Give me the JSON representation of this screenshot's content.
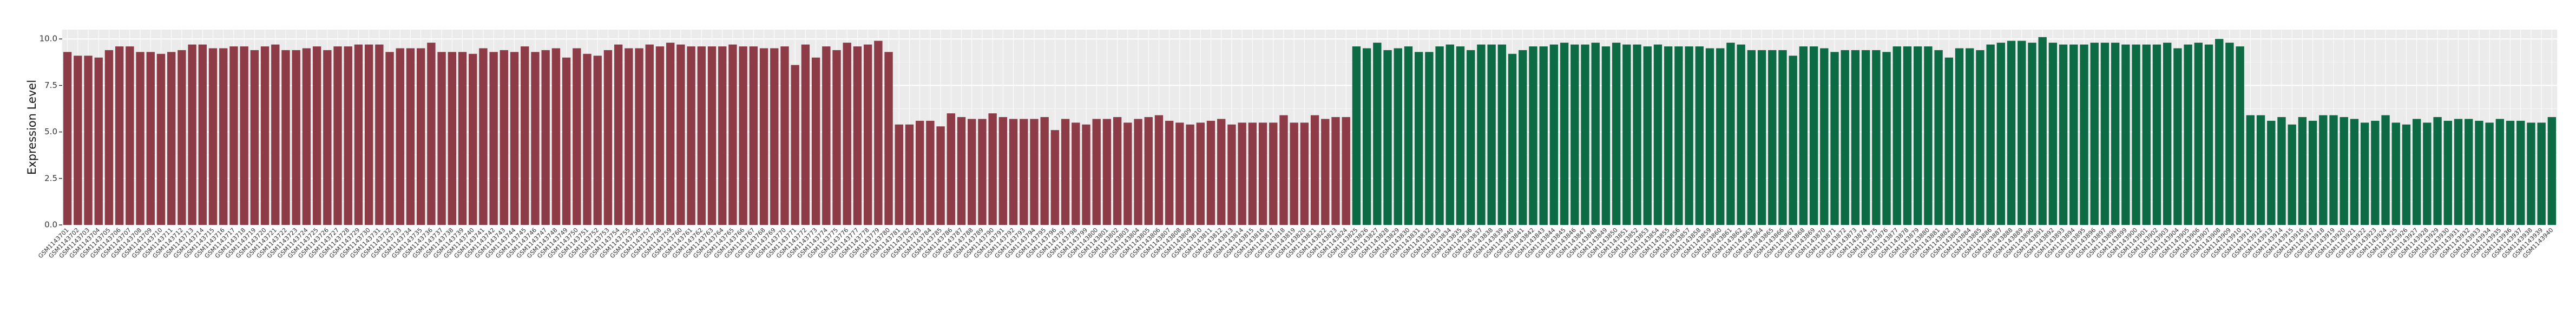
{
  "chart_data": {
    "type": "bar",
    "y_label": "Expression Level",
    "ylim": [
      0,
      10.5
    ],
    "yticks": [
      {
        "value": 0,
        "label": "0.0"
      },
      {
        "value": 2.5,
        "label": "2.5"
      },
      {
        "value": 5,
        "label": "5.0"
      },
      {
        "value": 7.5,
        "label": "7.5"
      },
      {
        "value": 10,
        "label": "10.0"
      }
    ],
    "grid": true,
    "categories": [
      "GSM1143701",
      "GSM1143702",
      "GSM1143703",
      "GSM1143704",
      "GSM1143705",
      "GSM1143706",
      "GSM1143707",
      "GSM1143708",
      "GSM1143709",
      "GSM1143710",
      "GSM1143711",
      "GSM1143712",
      "GSM1143713",
      "GSM1143714",
      "GSM1143715",
      "GSM1143716",
      "GSM1143717",
      "GSM1143718",
      "GSM1143719",
      "GSM1143720",
      "GSM1143721",
      "GSM1143722",
      "GSM1143723",
      "GSM1143724",
      "GSM1143725",
      "GSM1143726",
      "GSM1143727",
      "GSM1143728",
      "GSM1143729",
      "GSM1143730",
      "GSM1143731",
      "GSM1143732",
      "GSM1143733",
      "GSM1143734",
      "GSM1143735",
      "GSM1143736",
      "GSM1143737",
      "GSM1143738",
      "GSM1143739",
      "GSM1143740",
      "GSM1143741",
      "GSM1143742",
      "GSM1143743",
      "GSM1143744",
      "GSM1143745",
      "GSM1143746",
      "GSM1143747",
      "GSM1143748",
      "GSM1143749",
      "GSM1143750",
      "GSM1143751",
      "GSM1143752",
      "GSM1143753",
      "GSM1143754",
      "GSM1143755",
      "GSM1143756",
      "GSM1143757",
      "GSM1143758",
      "GSM1143759",
      "GSM1143760",
      "GSM1143761",
      "GSM1143762",
      "GSM1143763",
      "GSM1143764",
      "GSM1143765",
      "GSM1143766",
      "GSM1143767",
      "GSM1143768",
      "GSM1143769",
      "GSM1143770",
      "GSM1143771",
      "GSM1143772",
      "GSM1143773",
      "GSM1143774",
      "GSM1143775",
      "GSM1143776",
      "GSM1143777",
      "GSM1143778",
      "GSM1143779",
      "GSM1143780",
      "GSM1143781",
      "GSM1143782",
      "GSM1143783",
      "GSM1143784",
      "GSM1143785",
      "GSM1143786",
      "GSM1143787",
      "GSM1143788",
      "GSM1143789",
      "GSM1143790",
      "GSM1143791",
      "GSM1143792",
      "GSM1143793",
      "GSM1143794",
      "GSM1143795",
      "GSM1143796",
      "GSM1143797",
      "GSM1143798",
      "GSM1143799",
      "GSM1143800",
      "GSM1143801",
      "GSM1143802",
      "GSM1143803",
      "GSM1143804",
      "GSM1143805",
      "GSM1143806",
      "GSM1143807",
      "GSM1143808",
      "GSM1143809",
      "GSM1143810",
      "GSM1143811",
      "GSM1143812",
      "GSM1143813",
      "GSM1143814",
      "GSM1143815",
      "GSM1143816",
      "GSM1143817",
      "GSM1143818",
      "GSM1143819",
      "GSM1143820",
      "GSM1143821",
      "GSM1143822",
      "GSM1143823",
      "GSM1143824",
      "GSM1143825",
      "GSM1143826",
      "GSM1143827",
      "GSM1143828",
      "GSM1143829",
      "GSM1143830",
      "GSM1143831",
      "GSM1143832",
      "GSM1143833",
      "GSM1143834",
      "GSM1143835",
      "GSM1143836",
      "GSM1143837",
      "GSM1143838",
      "GSM1143839",
      "GSM1143840",
      "GSM1143841",
      "GSM1143842",
      "GSM1143843",
      "GSM1143844",
      "GSM1143845",
      "GSM1143846",
      "GSM1143847",
      "GSM1143848",
      "GSM1143849",
      "GSM1143850",
      "GSM1143851",
      "GSM1143852",
      "GSM1143853",
      "GSM1143854",
      "GSM1143855",
      "GSM1143856",
      "GSM1143857",
      "GSM1143858",
      "GSM1143859",
      "GSM1143860",
      "GSM1143861",
      "GSM1143862",
      "GSM1143863",
      "GSM1143864",
      "GSM1143865",
      "GSM1143866",
      "GSM1143867",
      "GSM1143868",
      "GSM1143869",
      "GSM1143870",
      "GSM1143871",
      "GSM1143872",
      "GSM1143873",
      "GSM1143874",
      "GSM1143875",
      "GSM1143876",
      "GSM1143877",
      "GSM1143878",
      "GSM1143879",
      "GSM1143880",
      "GSM1143881",
      "GSM1143882",
      "GSM1143883",
      "GSM1143884",
      "GSM1143885",
      "GSM1143886",
      "GSM1143887",
      "GSM1143888",
      "GSM1143889",
      "GSM1143890",
      "GSM1143891",
      "GSM1143892",
      "GSM1143893",
      "GSM1143894",
      "GSM1143895",
      "GSM1143896",
      "GSM1143897",
      "GSM1143898",
      "GSM1143899",
      "GSM1143900",
      "GSM1143901",
      "GSM1143902",
      "GSM1143903",
      "GSM1143904",
      "GSM1143905",
      "GSM1143906",
      "GSM1143907",
      "GSM1143908",
      "GSM1143909",
      "GSM1143910",
      "GSM1143911",
      "GSM1143912",
      "GSM1143913",
      "GSM1143914",
      "GSM1143915",
      "GSM1143916",
      "GSM1143917",
      "GSM1143918",
      "GSM1143919",
      "GSM1143920",
      "GSM1143921",
      "GSM1143922",
      "GSM1143923",
      "GSM1143924",
      "GSM1143925",
      "GSM1143926",
      "GSM1143927",
      "GSM1143928",
      "GSM1143929",
      "GSM1143930",
      "GSM1143931",
      "GSM1143932",
      "GSM1143933",
      "GSM1143934",
      "GSM1143935",
      "GSM1143936",
      "GSM1143937",
      "GSM1143938",
      "GSM1143939",
      "GSM1143940"
    ],
    "values": [
      9.3,
      9.1,
      9.1,
      9.0,
      9.4,
      9.6,
      9.6,
      9.3,
      9.3,
      9.2,
      9.3,
      9.4,
      9.7,
      9.7,
      9.5,
      9.5,
      9.6,
      9.6,
      9.4,
      9.6,
      9.7,
      9.4,
      9.4,
      9.5,
      9.6,
      9.4,
      9.6,
      9.6,
      9.7,
      9.7,
      9.7,
      9.3,
      9.5,
      9.5,
      9.5,
      9.8,
      9.3,
      9.3,
      9.3,
      9.2,
      9.5,
      9.3,
      9.4,
      9.3,
      9.6,
      9.3,
      9.4,
      9.5,
      9.0,
      9.5,
      9.2,
      9.1,
      9.4,
      9.7,
      9.5,
      9.5,
      9.7,
      9.6,
      9.8,
      9.7,
      9.6,
      9.6,
      9.6,
      9.6,
      9.7,
      9.6,
      9.6,
      9.5,
      9.5,
      9.6,
      8.6,
      9.7,
      9.0,
      9.6,
      9.4,
      9.8,
      9.6,
      9.7,
      9.9,
      9.3,
      5.4,
      5.4,
      5.6,
      5.6,
      5.3,
      6.0,
      5.8,
      5.7,
      5.7,
      6.0,
      5.8,
      5.7,
      5.7,
      5.7,
      5.8,
      5.1,
      5.7,
      5.5,
      5.4,
      5.7,
      5.7,
      5.8,
      5.5,
      5.7,
      5.8,
      5.9,
      5.6,
      5.5,
      5.4,
      5.5,
      5.6,
      5.7,
      5.4,
      5.5,
      5.5,
      5.5,
      5.5,
      5.9,
      5.5,
      5.5,
      5.9,
      5.7,
      5.8,
      5.8,
      9.6,
      9.5,
      9.8,
      9.4,
      9.5,
      9.6,
      9.3,
      9.3,
      9.6,
      9.7,
      9.6,
      9.4,
      9.7,
      9.7,
      9.7,
      9.2,
      9.4,
      9.6,
      9.6,
      9.7,
      9.8,
      9.7,
      9.7,
      9.8,
      9.6,
      9.8,
      9.7,
      9.7,
      9.6,
      9.7,
      9.6,
      9.6,
      9.6,
      9.6,
      9.5,
      9.5,
      9.8,
      9.7,
      9.4,
      9.4,
      9.4,
      9.4,
      9.1,
      9.6,
      9.6,
      9.5,
      9.3,
      9.4,
      9.4,
      9.4,
      9.4,
      9.3,
      9.6,
      9.6,
      9.6,
      9.6,
      9.4,
      9.0,
      9.5,
      9.5,
      9.4,
      9.7,
      9.8,
      9.9,
      9.9,
      9.8,
      10.1,
      9.8,
      9.7,
      9.7,
      9.7,
      9.8,
      9.8,
      9.8,
      9.7,
      9.7,
      9.7,
      9.7,
      9.8,
      9.5,
      9.7,
      9.8,
      9.7,
      10.0,
      9.8,
      9.6,
      5.9,
      5.9,
      5.6,
      5.8,
      5.4,
      5.8,
      5.6,
      5.9,
      5.9,
      5.8,
      5.7,
      5.5,
      5.6,
      5.9,
      5.5,
      5.4,
      5.7,
      5.5,
      5.8,
      5.6,
      5.7,
      5.7,
      5.6,
      5.5,
      5.7,
      5.6,
      5.6,
      5.5,
      5.5,
      5.8
    ],
    "colors": [
      "#8e3b48",
      "#8e3b48",
      "#8e3b48",
      "#8e3b48",
      "#8e3b48",
      "#8e3b48",
      "#8e3b48",
      "#8e3b48",
      "#8e3b48",
      "#8e3b48",
      "#8e3b48",
      "#8e3b48",
      "#8e3b48",
      "#8e3b48",
      "#8e3b48",
      "#8e3b48",
      "#8e3b48",
      "#8e3b48",
      "#8e3b48",
      "#8e3b48",
      "#8e3b48",
      "#8e3b48",
      "#8e3b48",
      "#8e3b48",
      "#8e3b48",
      "#8e3b48",
      "#8e3b48",
      "#8e3b48",
      "#8e3b48",
      "#8e3b48",
      "#8e3b48",
      "#8e3b48",
      "#8e3b48",
      "#8e3b48",
      "#8e3b48",
      "#8e3b48",
      "#8e3b48",
      "#8e3b48",
      "#8e3b48",
      "#8e3b48",
      "#8e3b48",
      "#8e3b48",
      "#8e3b48",
      "#8e3b48",
      "#8e3b48",
      "#8e3b48",
      "#8e3b48",
      "#8e3b48",
      "#8e3b48",
      "#8e3b48",
      "#8e3b48",
      "#8e3b48",
      "#8e3b48",
      "#8e3b48",
      "#8e3b48",
      "#8e3b48",
      "#8e3b48",
      "#8e3b48",
      "#8e3b48",
      "#8e3b48",
      "#8e3b48",
      "#8e3b48",
      "#8e3b48",
      "#8e3b48",
      "#8e3b48",
      "#8e3b48",
      "#8e3b48",
      "#8e3b48",
      "#8e3b48",
      "#8e3b48",
      "#8e3b48",
      "#8e3b48",
      "#8e3b48",
      "#8e3b48",
      "#8e3b48",
      "#8e3b48",
      "#8e3b48",
      "#8e3b48",
      "#8e3b48",
      "#8e3b48",
      "#8e3b48",
      "#8e3b48",
      "#8e3b48",
      "#8e3b48",
      "#8e3b48",
      "#8e3b48",
      "#8e3b48",
      "#8e3b48",
      "#8e3b48",
      "#8e3b48",
      "#8e3b48",
      "#8e3b48",
      "#8e3b48",
      "#8e3b48",
      "#8e3b48",
      "#8e3b48",
      "#8e3b48",
      "#8e3b48",
      "#8e3b48",
      "#8e3b48",
      "#8e3b48",
      "#8e3b48",
      "#8e3b48",
      "#8e3b48",
      "#8e3b48",
      "#8e3b48",
      "#8e3b48",
      "#8e3b48",
      "#8e3b48",
      "#8e3b48",
      "#8e3b48",
      "#8e3b48",
      "#8e3b48",
      "#8e3b48",
      "#8e3b48",
      "#8e3b48",
      "#8e3b48",
      "#8e3b48",
      "#8e3b48",
      "#8e3b48",
      "#8e3b48",
      "#8e3b48",
      "#8e3b48",
      "#8e3b48",
      "#0c6b44",
      "#0c6b44",
      "#0c6b44",
      "#0c6b44",
      "#0c6b44",
      "#0c6b44",
      "#0c6b44",
      "#0c6b44",
      "#0c6b44",
      "#0c6b44",
      "#0c6b44",
      "#0c6b44",
      "#0c6b44",
      "#0c6b44",
      "#0c6b44",
      "#0c6b44",
      "#0c6b44",
      "#0c6b44",
      "#0c6b44",
      "#0c6b44",
      "#0c6b44",
      "#0c6b44",
      "#0c6b44",
      "#0c6b44",
      "#0c6b44",
      "#0c6b44",
      "#0c6b44",
      "#0c6b44",
      "#0c6b44",
      "#0c6b44",
      "#0c6b44",
      "#0c6b44",
      "#0c6b44",
      "#0c6b44",
      "#0c6b44",
      "#0c6b44",
      "#0c6b44",
      "#0c6b44",
      "#0c6b44",
      "#0c6b44",
      "#0c6b44",
      "#0c6b44",
      "#0c6b44",
      "#0c6b44",
      "#0c6b44",
      "#0c6b44",
      "#0c6b44",
      "#0c6b44",
      "#0c6b44",
      "#0c6b44",
      "#0c6b44",
      "#0c6b44",
      "#0c6b44",
      "#0c6b44",
      "#0c6b44",
      "#0c6b44",
      "#0c6b44",
      "#0c6b44",
      "#0c6b44",
      "#0c6b44",
      "#0c6b44",
      "#0c6b44",
      "#0c6b44",
      "#0c6b44",
      "#0c6b44",
      "#0c6b44",
      "#0c6b44",
      "#0c6b44",
      "#0c6b44",
      "#0c6b44",
      "#0c6b44",
      "#0c6b44",
      "#0c6b44",
      "#0c6b44",
      "#0c6b44",
      "#0c6b44",
      "#0c6b44",
      "#0c6b44",
      "#0c6b44",
      "#0c6b44",
      "#0c6b44",
      "#0c6b44",
      "#0c6b44",
      "#0c6b44",
      "#0c6b44",
      "#0c6b44",
      "#0c6b44",
      "#0c6b44",
      "#0c6b44",
      "#0c6b44",
      "#0c6b44",
      "#0c6b44",
      "#0c6b44",
      "#0c6b44",
      "#0c6b44",
      "#0c6b44",
      "#0c6b44",
      "#0c6b44",
      "#0c6b44",
      "#0c6b44",
      "#0c6b44",
      "#0c6b44",
      "#0c6b44",
      "#0c6b44",
      "#0c6b44",
      "#0c6b44",
      "#0c6b44",
      "#0c6b44",
      "#0c6b44",
      "#0c6b44",
      "#0c6b44",
      "#0c6b44",
      "#0c6b44",
      "#0c6b44",
      "#0c6b44",
      "#0c6b44"
    ]
  }
}
